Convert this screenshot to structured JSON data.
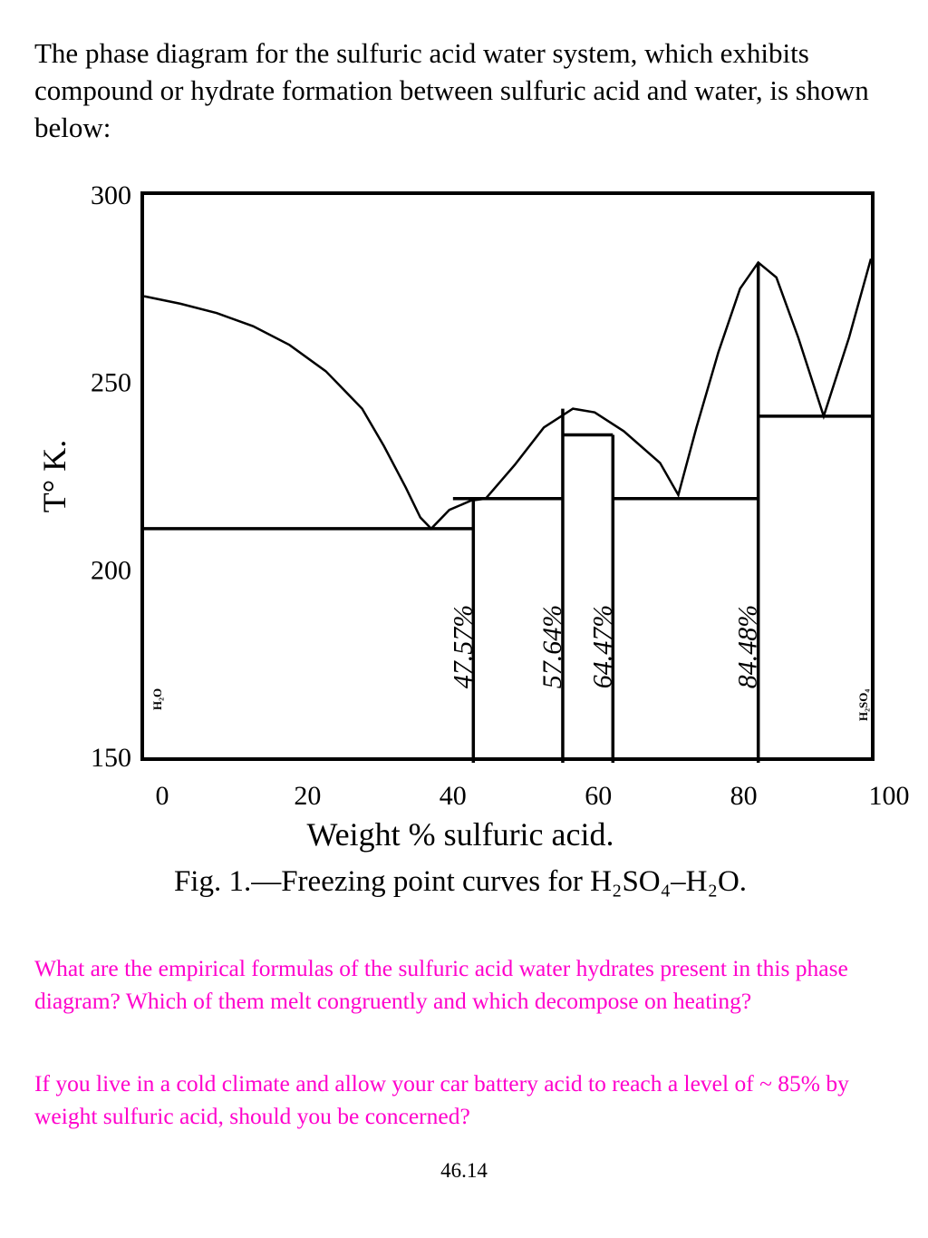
{
  "intro_text": "The phase diagram for the sulfuric acid water system, which exhibits compound or hydrate formation between sulfuric acid and water, is shown below:",
  "chart_data": {
    "type": "line",
    "title": "",
    "caption": "Fig. 1.—Freezing point curves for H₂SO₄–H₂O.",
    "xlabel": "Weight % sulfuric acid.",
    "ylabel": "T° K.",
    "xlim": [
      0,
      100
    ],
    "ylim": [
      150,
      300
    ],
    "x_ticks": [
      0,
      20,
      40,
      60,
      80,
      100
    ],
    "y_ticks": [
      150,
      200,
      250,
      300
    ],
    "grid": false,
    "end_labels": {
      "left": "H₂O",
      "right": "H₂SO₄"
    },
    "liquidus": [
      [
        0,
        273
      ],
      [
        5,
        271
      ],
      [
        10,
        268.5
      ],
      [
        15,
        265
      ],
      [
        20,
        260
      ],
      [
        25,
        253
      ],
      [
        30,
        243
      ],
      [
        33,
        233
      ],
      [
        36,
        222
      ],
      [
        38,
        214
      ],
      [
        39.5,
        211
      ],
      [
        42,
        216
      ],
      [
        45,
        218.5
      ],
      [
        47,
        219
      ],
      [
        51,
        228
      ],
      [
        55,
        238
      ],
      [
        59,
        243
      ],
      [
        62,
        242
      ],
      [
        66,
        237
      ],
      [
        71,
        228.5
      ],
      [
        73.5,
        220
      ],
      [
        76,
        238
      ],
      [
        79,
        258
      ],
      [
        82,
        275
      ],
      [
        84.5,
        282
      ],
      [
        87,
        278
      ],
      [
        90,
        262
      ],
      [
        93.5,
        241
      ],
      [
        97,
        262
      ],
      [
        100,
        283
      ]
    ],
    "eutectic_lines": [
      {
        "temperature": 211,
        "x_from": 0,
        "x_to": 45.3
      },
      {
        "temperature": 219,
        "x_from": 42.5,
        "x_to": 57.6
      },
      {
        "temperature": 236,
        "x_from": 57.6,
        "x_to": 64.5
      },
      {
        "temperature": 219,
        "x_from": 64.5,
        "x_to": 84.5
      },
      {
        "temperature": 241,
        "x_from": 84.5,
        "x_to": 100
      }
    ],
    "compounds": [
      {
        "x": 45.3,
        "label": "47.57%",
        "melting": 219
      },
      {
        "x": 57.6,
        "label": "57.64%",
        "melting": 243
      },
      {
        "x": 64.5,
        "label": "64.47%",
        "melting": 236
      },
      {
        "x": 84.5,
        "label": "84.48%",
        "melting": 282
      }
    ]
  },
  "question_1": "What are the empirical formulas of the sulfuric acid water hydrates present in this phase diagram?  Which of them melt congruently and which decompose on heating?",
  "question_2": "If you live in a cold climate and allow your car battery acid to reach a level of ~ 85% by weight sulfuric acid, should you be concerned?",
  "page_number": "46.14"
}
